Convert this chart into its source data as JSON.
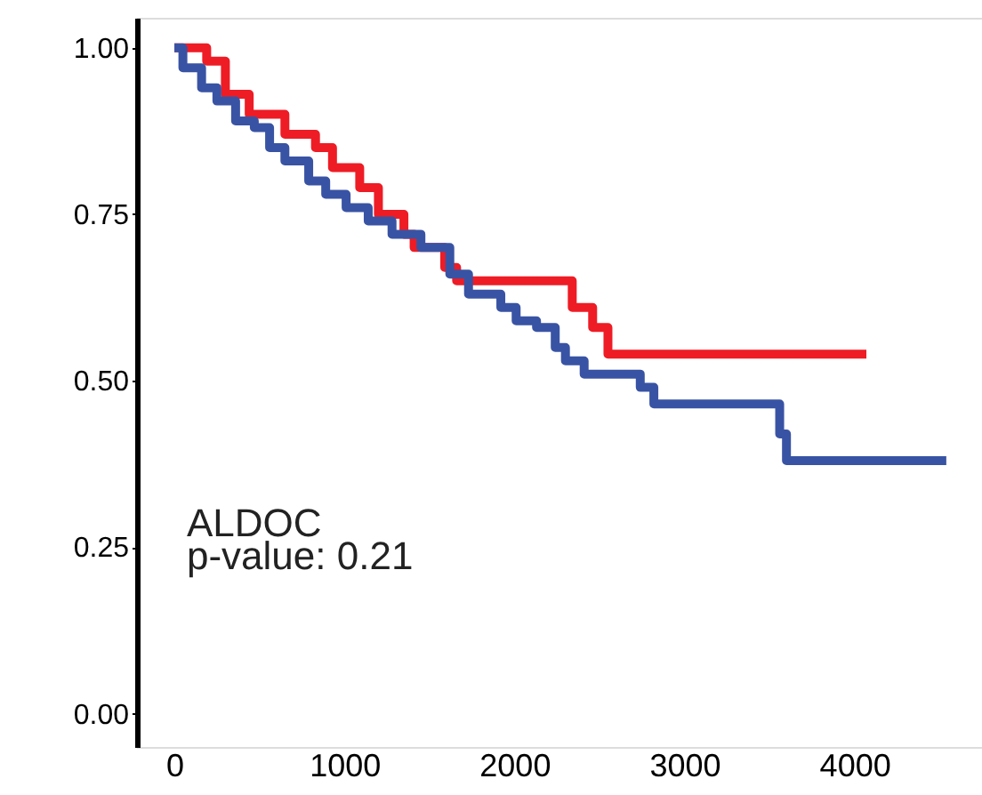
{
  "chart_data": {
    "type": "step",
    "xlim": [
      -220,
      4750
    ],
    "ylim": [
      -0.05,
      1.045
    ],
    "xticks": [
      0,
      1000,
      2000,
      3000,
      4000
    ],
    "yticks": [
      {
        "value": 0,
        "label": "0.00"
      },
      {
        "value": 0.25,
        "label": "0.25"
      },
      {
        "value": 0.5,
        "label": "0.50"
      },
      {
        "value": 0.75,
        "label": "0.75"
      },
      {
        "value": 1,
        "label": "1.00"
      }
    ],
    "grid": false,
    "line_style": "solid",
    "marker": "none",
    "annotations": [
      "ALDOC",
      "p-value: 0.21"
    ],
    "series": [
      {
        "color": "#ee1c25",
        "x": [
          0,
          190,
          300,
          440,
          650,
          830,
          930,
          1090,
          1200,
          1350,
          1410,
          1590,
          1660,
          2340,
          2460,
          2550,
          4070
        ],
        "values": [
          1.0,
          0.98,
          0.93,
          0.9,
          0.87,
          0.85,
          0.82,
          0.79,
          0.75,
          0.72,
          0.7,
          0.67,
          0.65,
          0.61,
          0.58,
          0.54,
          0.54
        ]
      },
      {
        "color": "#3953a4",
        "x": [
          0,
          50,
          160,
          250,
          360,
          470,
          560,
          650,
          790,
          890,
          1010,
          1140,
          1280,
          1450,
          1620,
          1730,
          1920,
          2010,
          2130,
          2240,
          2300,
          2410,
          2740,
          2820,
          3560,
          3600,
          4540
        ],
        "values": [
          1.0,
          0.97,
          0.94,
          0.92,
          0.89,
          0.88,
          0.85,
          0.83,
          0.8,
          0.78,
          0.76,
          0.74,
          0.72,
          0.7,
          0.66,
          0.63,
          0.61,
          0.59,
          0.58,
          0.55,
          0.53,
          0.51,
          0.49,
          0.465,
          0.42,
          0.38,
          0.38
        ]
      }
    ]
  }
}
